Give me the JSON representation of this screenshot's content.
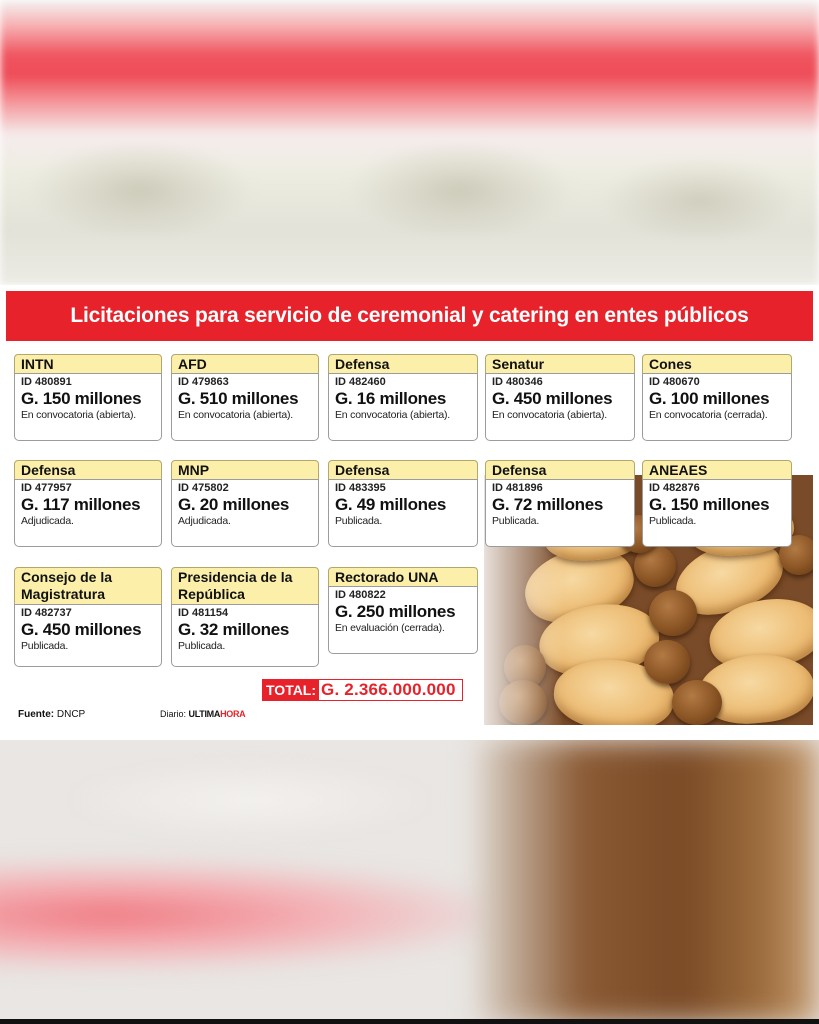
{
  "title": "Licitaciones para servicio de ceremonial y catering en entes públicos",
  "cards": [
    {
      "entity": "INTN",
      "id": "ID 480891",
      "amount": "G. 150 millones",
      "status": "En convocatoria (abierta)."
    },
    {
      "entity": "AFD",
      "id": "ID 479863",
      "amount": "G. 510 millones",
      "status": "En convocatoria (abierta)."
    },
    {
      "entity": "Defensa",
      "id": "ID 482460",
      "amount": "G. 16 millones",
      "status": "En convocatoria (abierta)."
    },
    {
      "entity": "Senatur",
      "id": "ID 480346",
      "amount": "G. 450 millones",
      "status": "En convocatoria (abierta)."
    },
    {
      "entity": "Cones",
      "id": "ID 480670",
      "amount": "G. 100 millones",
      "status": "En convocatoria (cerrada)."
    },
    {
      "entity": "Defensa",
      "id": "ID 477957",
      "amount": "G. 117 millones",
      "status": "Adjudicada."
    },
    {
      "entity": "MNP",
      "id": "ID 475802",
      "amount": "G. 20 millones",
      "status": "Adjudicada."
    },
    {
      "entity": "Defensa",
      "id": "ID 483395",
      "amount": "G. 49 millones",
      "status": "Publicada."
    },
    {
      "entity": "Defensa",
      "id": "ID 481896",
      "amount": "G. 72 millones",
      "status": "Publicada."
    },
    {
      "entity": "ANEAES",
      "id": "ID 482876",
      "amount": "G. 150 millones",
      "status": "Publicada."
    },
    {
      "entity": "Consejo de la Magistratura",
      "id": "ID 482737",
      "amount": "G. 450 millones",
      "status": "Publicada."
    },
    {
      "entity": "Presidencia de la República",
      "id": "ID 481154",
      "amount": "G. 32 millones",
      "status": "Publicada."
    },
    {
      "entity": "Rectorado UNA",
      "id": "ID 480822",
      "amount": "G. 250 millones",
      "status": "En evaluación (cerrada)."
    }
  ],
  "total": {
    "label": "TOTAL:",
    "value": "G. 2.366.000.000"
  },
  "source": {
    "label": "Fuente:",
    "value": "DNCP"
  },
  "credit": {
    "prefix": "Diario:",
    "brand_part1": "ULTIMA",
    "brand_part2": "HORA"
  },
  "colors": {
    "banner": "#e8222a",
    "card_header": "#fbefaa",
    "total_value": "#e8222a"
  }
}
